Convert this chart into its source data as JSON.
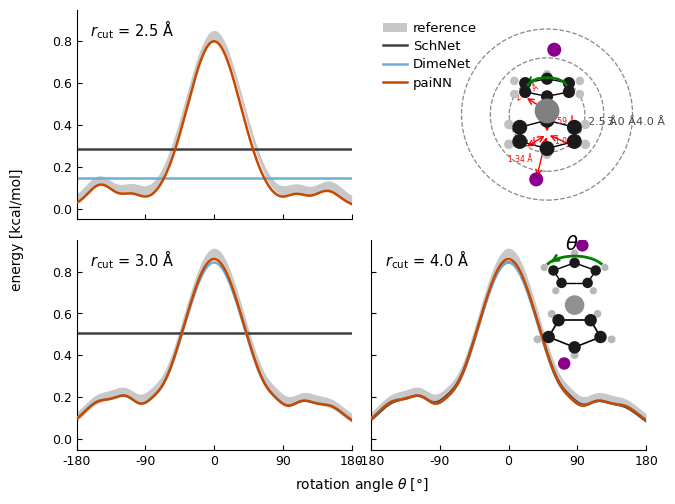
{
  "xlabel": "rotation angle θ [°]",
  "ylabel": "energy [kcal/mol]",
  "xlim": [
    -180,
    180
  ],
  "xticks": [
    -180,
    -90,
    0,
    90,
    180
  ],
  "ylim": [
    -0.05,
    0.95
  ],
  "yticks": [
    0.0,
    0.2,
    0.4,
    0.6,
    0.8
  ],
  "ref_color": "#c8c8c8",
  "schnet_color": "#404040",
  "dimenet_color": "#6ab0d8",
  "painn_color": "#c84800",
  "line_lw": 1.8,
  "ref_lw": 8,
  "schnet_25_level": 0.285,
  "dimenet_25_level": 0.148,
  "schnet_30_level": 0.505,
  "legend_labels": [
    "reference",
    "SchNet",
    "DimeNet",
    "paiNN"
  ],
  "circle_radii_label": [
    "2.5 Å",
    "3.0 Å",
    "4.0 Å"
  ],
  "circle_label_angles": [
    0,
    0,
    0
  ]
}
